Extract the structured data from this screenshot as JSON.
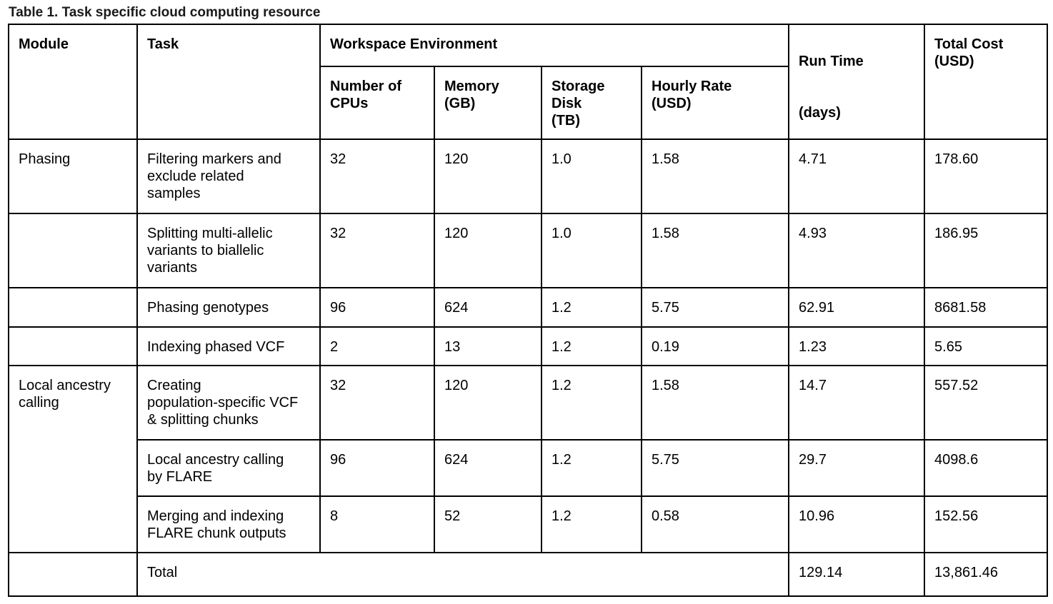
{
  "caption": "Table 1. Task specific cloud computing resource",
  "headers": {
    "module": "Module",
    "task": "Task",
    "workspace": "Workspace Environment",
    "cpus": "Number of\nCPUs",
    "memory": "Memory\n(GB)",
    "storage": "Storage\nDisk\n(TB)",
    "hourly_rate": "Hourly Rate\n(USD)",
    "run_time": "Run Time",
    "run_time_unit": "(days)",
    "total_cost": "Total Cost\n(USD)"
  },
  "rows": [
    {
      "module": "Phasing",
      "task": "Filtering markers and\nexclude related\nsamples",
      "cpus": "32",
      "memory": "120",
      "storage": "1.0",
      "rate": "1.58",
      "run_time": "4.71",
      "cost": "178.60"
    },
    {
      "module": "",
      "task": "Splitting multi-allelic\nvariants to biallelic\nvariants",
      "cpus": "32",
      "memory": "120",
      "storage": "1.0",
      "rate": "1.58",
      "run_time": "4.93",
      "cost": "186.95"
    },
    {
      "module": "",
      "task": "Phasing genotypes",
      "cpus": "96",
      "memory": "624",
      "storage": "1.2",
      "rate": "5.75",
      "run_time": "62.91",
      "cost": "8681.58"
    },
    {
      "module": "",
      "task": "Indexing phased VCF",
      "cpus": "2",
      "memory": "13",
      "storage": "1.2",
      "rate": "0.19",
      "run_time": "1.23",
      "cost": "5.65"
    },
    {
      "module": "Local ancestry\ncalling",
      "task": "Creating\npopulation-specific VCF\n& splitting chunks",
      "cpus": "32",
      "memory": "120",
      "storage": "1.2",
      "rate": "1.58",
      "run_time": "14.7",
      "cost": "557.52"
    },
    {
      "task": "Local ancestry calling\nby FLARE",
      "cpus": "96",
      "memory": "624",
      "storage": "1.2",
      "rate": "5.75",
      "run_time": "29.7",
      "cost": "4098.6"
    },
    {
      "task": "Merging and indexing\nFLARE chunk outputs",
      "cpus": "8",
      "memory": "52",
      "storage": "1.2",
      "rate": "0.58",
      "run_time": "10.96",
      "cost": "152.56"
    }
  ],
  "total_row": {
    "module": "",
    "label": "Total",
    "run_time": "129.14",
    "cost": "13,861.46"
  }
}
